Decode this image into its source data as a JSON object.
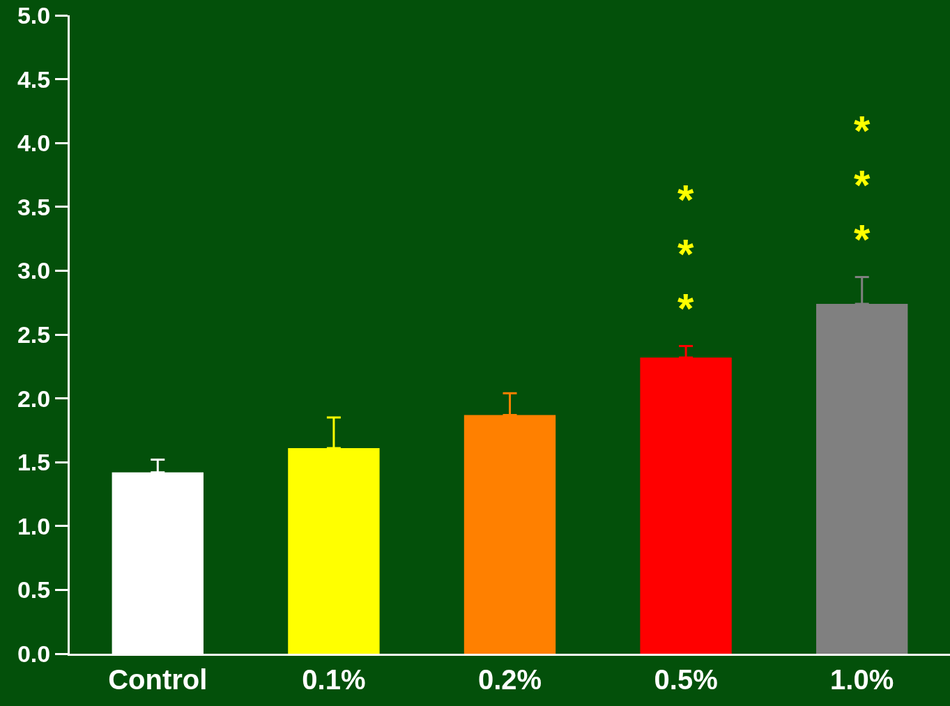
{
  "chart_data": {
    "type": "bar",
    "categories": [
      "Control",
      "0.1%",
      "0.2%",
      "0.5%",
      "1.0%"
    ],
    "values": [
      1.42,
      1.61,
      1.87,
      2.32,
      2.74
    ],
    "colors": [
      "#ffffff",
      "#ffff00",
      "#ff8000",
      "#ff0000",
      "#808080"
    ],
    "errors": [
      [
        1.42,
        1.52
      ],
      [
        1.61,
        1.85
      ],
      [
        1.87,
        2.04
      ],
      [
        2.32,
        2.41
      ],
      [
        2.74,
        2.95
      ]
    ],
    "ylim": [
      0,
      5
    ],
    "yticks": [
      {
        "value": 0,
        "label": "0.0"
      },
      0.5,
      {
        "value": 1,
        "label": "1.0"
      },
      1.5,
      {
        "value": 2,
        "label": "2.0"
      },
      2.5,
      {
        "value": 3,
        "label": "3.0"
      },
      3.5,
      {
        "value": 4,
        "label": "4.0"
      },
      4.5,
      {
        "value": 5,
        "label": "5.0"
      }
    ],
    "grid": false,
    "annotations": [
      "*\n*\n*",
      "*\n*\n*"
    ]
  }
}
